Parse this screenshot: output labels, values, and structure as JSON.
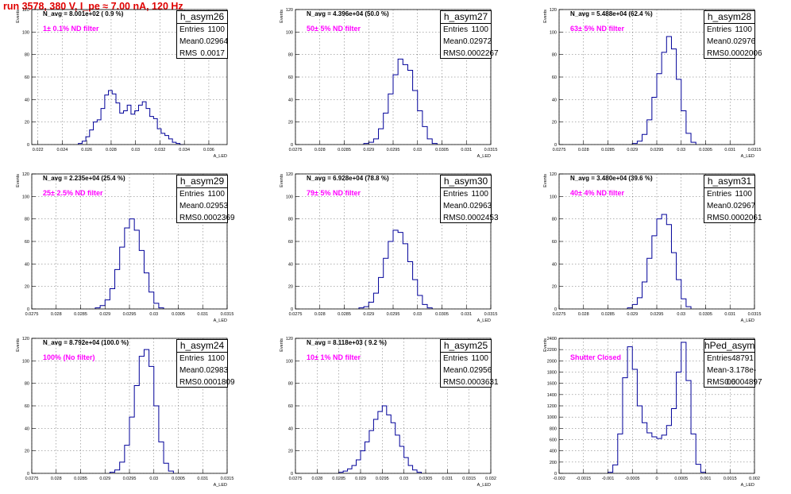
{
  "header": {
    "title": "run 3578,   380 V, I_pe ≈ 7.00 nA, 120 Hz"
  },
  "chart_data": [
    {
      "type": "bar",
      "name": "h_asym26",
      "navg": "N_avg = 8.001e+02 ( 0.9 %)",
      "filter": "1± 0.1% ND filter",
      "stats": {
        "entries": "1100",
        "mean": "0.02964",
        "rms": "0.0017"
      },
      "xlabel": "A_LED",
      "ylabel": "Events",
      "xlim": [
        0.0215,
        0.0375
      ],
      "ylim": [
        0,
        120
      ],
      "xticks": [
        "0.022",
        "0.024",
        "0.026",
        "0.028",
        "0.03",
        "0.032",
        "0.034",
        "0.036"
      ],
      "xtick_values": [
        0.022,
        0.024,
        0.026,
        0.028,
        0.03,
        0.032,
        0.034,
        0.036
      ],
      "yticks": [
        0,
        20,
        40,
        60,
        80,
        100,
        120
      ],
      "grid": true,
      "x": [
        0.02547,
        0.02578,
        0.02608,
        0.02639,
        0.0267,
        0.02701,
        0.02732,
        0.02763,
        0.02793,
        0.02824,
        0.02855,
        0.02886,
        0.02917,
        0.02947,
        0.02978,
        0.03009,
        0.0304,
        0.03071,
        0.03102,
        0.03132,
        0.03163,
        0.03194,
        0.03225,
        0.03256,
        0.03287,
        0.03317,
        0.03348,
        0.03379
      ],
      "values": [
        1,
        3,
        7,
        13,
        20,
        22,
        32,
        44,
        48,
        45,
        37,
        28,
        30,
        35,
        27,
        30,
        35,
        38,
        32,
        25,
        23,
        14,
        10,
        8,
        5,
        2,
        1,
        0
      ]
    },
    {
      "type": "bar",
      "name": "h_asym27",
      "navg": "N_avg = 4.396e+04 (50.0 %)",
      "filter": "50± 5% ND filter",
      "stats": {
        "entries": "1100",
        "mean": "0.02972",
        "rms": "0.0002267"
      },
      "xlabel": "A_LED",
      "ylabel": "Events",
      "xlim": [
        0.0275,
        0.0315
      ],
      "ylim": [
        0,
        120
      ],
      "xticks": [
        "0.0275",
        "0.028",
        "0.0285",
        "0.029",
        "0.0295",
        "0.03",
        "0.0305",
        "0.031",
        "0.0315"
      ],
      "xtick_values": [
        0.0275,
        0.028,
        0.0285,
        0.029,
        0.0295,
        0.03,
        0.0305,
        0.031,
        0.0315
      ],
      "yticks": [
        0,
        20,
        40,
        60,
        80,
        100,
        120
      ],
      "grid": true,
      "x": [
        0.02895,
        0.02905,
        0.02915,
        0.02925,
        0.02935,
        0.02945,
        0.02955,
        0.02965,
        0.02975,
        0.02985,
        0.02995,
        0.03005,
        0.03015,
        0.03025,
        0.03035
      ],
      "values": [
        1,
        2,
        5,
        14,
        28,
        45,
        62,
        76,
        71,
        66,
        48,
        30,
        16,
        5,
        1
      ]
    },
    {
      "type": "bar",
      "name": "h_asym28",
      "navg": "N_avg = 5.488e+04 (62.4 %)",
      "filter": "63± 5% ND filter",
      "stats": {
        "entries": "1100",
        "mean": "0.02976",
        "rms": "0.0002006"
      },
      "xlabel": "A_LED",
      "ylabel": "Events",
      "xlim": [
        0.0275,
        0.0315
      ],
      "ylim": [
        0,
        120
      ],
      "xticks": [
        "0.0275",
        "0.028",
        "0.0285",
        "0.029",
        "0.0295",
        "0.03",
        "0.0305",
        "0.031",
        "0.0315"
      ],
      "xtick_values": [
        0.0275,
        0.028,
        0.0285,
        0.029,
        0.0295,
        0.03,
        0.0305,
        0.031,
        0.0315
      ],
      "yticks": [
        0,
        20,
        40,
        60,
        80,
        100,
        120
      ],
      "grid": true,
      "x": [
        0.02905,
        0.02915,
        0.02925,
        0.02935,
        0.02945,
        0.02955,
        0.02965,
        0.02975,
        0.02985,
        0.02995,
        0.03005,
        0.03015,
        0.03025
      ],
      "values": [
        1,
        3,
        9,
        22,
        42,
        63,
        82,
        96,
        85,
        58,
        30,
        10,
        2
      ]
    },
    {
      "type": "bar",
      "name": "h_asym29",
      "navg": "N_avg = 2.235e+04 (25.4 %)",
      "filter": "25± 2.5% ND filter",
      "stats": {
        "entries": "1100",
        "mean": "0.02953",
        "rms": "0.0002369"
      },
      "xlabel": "A_LED",
      "ylabel": "Events",
      "xlim": [
        0.0275,
        0.0315
      ],
      "ylim": [
        0,
        120
      ],
      "xticks": [
        "0.0275",
        "0.028",
        "0.0285",
        "0.029",
        "0.0295",
        "0.03",
        "0.0305",
        "0.031",
        "0.0315"
      ],
      "xtick_values": [
        0.0275,
        0.028,
        0.0285,
        0.029,
        0.0295,
        0.03,
        0.0305,
        0.031,
        0.0315
      ],
      "yticks": [
        0,
        20,
        40,
        60,
        80,
        100,
        120
      ],
      "grid": true,
      "x": [
        0.02885,
        0.02895,
        0.02905,
        0.02915,
        0.02925,
        0.02935,
        0.02945,
        0.02955,
        0.02965,
        0.02975,
        0.02985,
        0.02995,
        0.03005,
        0.03015
      ],
      "values": [
        1,
        3,
        8,
        18,
        35,
        55,
        72,
        80,
        70,
        52,
        32,
        15,
        5,
        1
      ]
    },
    {
      "type": "bar",
      "name": "h_asym30",
      "navg": "N_avg = 6.928e+04 (78.8 %)",
      "filter": "79± 5% ND filter",
      "stats": {
        "entries": "1100",
        "mean": "0.02963",
        "rms": "0.0002453"
      },
      "xlabel": "A_LED",
      "ylabel": "Events",
      "xlim": [
        0.0275,
        0.0315
      ],
      "ylim": [
        0,
        120
      ],
      "xticks": [
        "0.0275",
        "0.028",
        "0.0285",
        "0.029",
        "0.0295",
        "0.03",
        "0.0305",
        "0.031",
        "0.0315"
      ],
      "xtick_values": [
        0.0275,
        0.028,
        0.0285,
        0.029,
        0.0295,
        0.03,
        0.0305,
        0.031,
        0.0315
      ],
      "yticks": [
        0,
        20,
        40,
        60,
        80,
        100,
        120
      ],
      "grid": true,
      "x": [
        0.02885,
        0.02895,
        0.02905,
        0.02915,
        0.02925,
        0.02935,
        0.02945,
        0.02955,
        0.02965,
        0.02975,
        0.02985,
        0.02995,
        0.03005,
        0.03015,
        0.03025
      ],
      "values": [
        1,
        2,
        6,
        14,
        28,
        45,
        60,
        70,
        68,
        58,
        42,
        26,
        12,
        4,
        1
      ]
    },
    {
      "type": "bar",
      "name": "h_asym31",
      "navg": "N_avg = 3.480e+04 (39.6 %)",
      "filter": "40± 4% ND filter",
      "stats": {
        "entries": "1100",
        "mean": "0.02967",
        "rms": "0.0002061"
      },
      "xlabel": "A_LED",
      "ylabel": "Events",
      "xlim": [
        0.0275,
        0.0315
      ],
      "ylim": [
        0,
        120
      ],
      "xticks": [
        "0.0275",
        "0.028",
        "0.0285",
        "0.029",
        "0.0295",
        "0.03",
        "0.0305",
        "0.031",
        "0.0315"
      ],
      "xtick_values": [
        0.0275,
        0.028,
        0.0285,
        0.029,
        0.0295,
        0.03,
        0.0305,
        0.031,
        0.0315
      ],
      "yticks": [
        0,
        20,
        40,
        60,
        80,
        100,
        120
      ],
      "grid": true,
      "x": [
        0.02895,
        0.02905,
        0.02915,
        0.02925,
        0.02935,
        0.02945,
        0.02955,
        0.02965,
        0.02975,
        0.02985,
        0.02995,
        0.03005,
        0.03015
      ],
      "values": [
        1,
        4,
        10,
        24,
        45,
        65,
        80,
        84,
        75,
        50,
        26,
        9,
        2
      ]
    },
    {
      "type": "bar",
      "name": "h_asym24",
      "navg": "N_avg = 8.792e+04 (100.0 %)",
      "filter": "100% (No filter)",
      "stats": {
        "entries": "1100",
        "mean": "0.02983",
        "rms": "0.0001809"
      },
      "xlabel": "A_LED",
      "ylabel": "Events",
      "xlim": [
        0.0275,
        0.0315
      ],
      "ylim": [
        0,
        120
      ],
      "xticks": [
        "0.0275",
        "0.028",
        "0.0285",
        "0.029",
        "0.0295",
        "0.03",
        "0.0305",
        "0.031",
        "0.0315"
      ],
      "xtick_values": [
        0.0275,
        0.028,
        0.0285,
        0.029,
        0.0295,
        0.03,
        0.0305,
        0.031,
        0.0315
      ],
      "yticks": [
        0,
        20,
        40,
        60,
        80,
        100,
        120
      ],
      "grid": true,
      "x": [
        0.02915,
        0.02925,
        0.02935,
        0.02945,
        0.02955,
        0.02965,
        0.02975,
        0.02985,
        0.02995,
        0.03005,
        0.03015,
        0.03025,
        0.03035
      ],
      "values": [
        1,
        3,
        10,
        25,
        50,
        78,
        104,
        110,
        95,
        60,
        28,
        9,
        2
      ]
    },
    {
      "type": "bar",
      "name": "h_asym25",
      "navg": "N_avg = 8.118e+03 ( 9.2 %)",
      "filter": "10± 1% ND filter",
      "stats": {
        "entries": "1100",
        "mean": "0.02956",
        "rms": "0.0003631"
      },
      "xlabel": "A_LED",
      "ylabel": "Events",
      "xlim": [
        0.0275,
        0.032
      ],
      "ylim": [
        0,
        120
      ],
      "xticks": [
        "0.0275",
        "0.028",
        "0.0285",
        "0.029",
        "0.0295",
        "0.03",
        "0.0305",
        "0.031",
        "0.0315",
        "0.032"
      ],
      "xtick_values": [
        0.0275,
        0.028,
        0.0285,
        0.029,
        0.0295,
        0.03,
        0.0305,
        0.031,
        0.0315,
        0.032
      ],
      "yticks": [
        0,
        20,
        40,
        60,
        80,
        100,
        120
      ],
      "grid": true,
      "x": [
        0.02855,
        0.02865,
        0.02875,
        0.02885,
        0.02895,
        0.02905,
        0.02915,
        0.02925,
        0.02935,
        0.02945,
        0.02955,
        0.02965,
        0.02975,
        0.02985,
        0.02995,
        0.03005,
        0.03015,
        0.03025,
        0.03035
      ],
      "values": [
        1,
        2,
        4,
        7,
        12,
        20,
        28,
        38,
        48,
        55,
        60,
        52,
        45,
        34,
        24,
        14,
        7,
        3,
        1
      ]
    },
    {
      "type": "bar",
      "name": "hPed_asym",
      "navg": "",
      "filter": "Shutter Closed",
      "stats": {
        "entries": "48791",
        "mean": "-3.178e-06",
        "rms": "0.0004897"
      },
      "xlabel": "A_LED",
      "ylabel": "Events",
      "xlim": [
        -0.002,
        0.002
      ],
      "ylim": [
        0,
        2400
      ],
      "xticks": [
        "-0.002",
        "-0.0015",
        "-0.001",
        "-0.0005",
        "0",
        "0.0005",
        "0.001",
        "0.0015",
        "0.002"
      ],
      "xtick_values": [
        -0.002,
        -0.0015,
        -0.001,
        -0.0005,
        0,
        0.0005,
        0.001,
        0.0015,
        0.002
      ],
      "yticks": [
        0,
        200,
        400,
        600,
        800,
        1000,
        1200,
        1400,
        1600,
        1800,
        2000,
        2200,
        2400
      ],
      "grid": true,
      "x": [
        -0.00095,
        -0.00085,
        -0.00075,
        -0.00065,
        -0.00055,
        -0.00045,
        -0.00035,
        -0.00025,
        -0.00015,
        -5e-05,
        5e-05,
        0.00015,
        0.00025,
        0.00035,
        0.00045,
        0.00055,
        0.00065,
        0.00075,
        0.00085,
        0.00095
      ],
      "values": [
        20,
        150,
        700,
        1700,
        2250,
        1850,
        1200,
        900,
        720,
        650,
        620,
        680,
        850,
        1150,
        1800,
        2330,
        1650,
        700,
        160,
        20
      ]
    }
  ]
}
